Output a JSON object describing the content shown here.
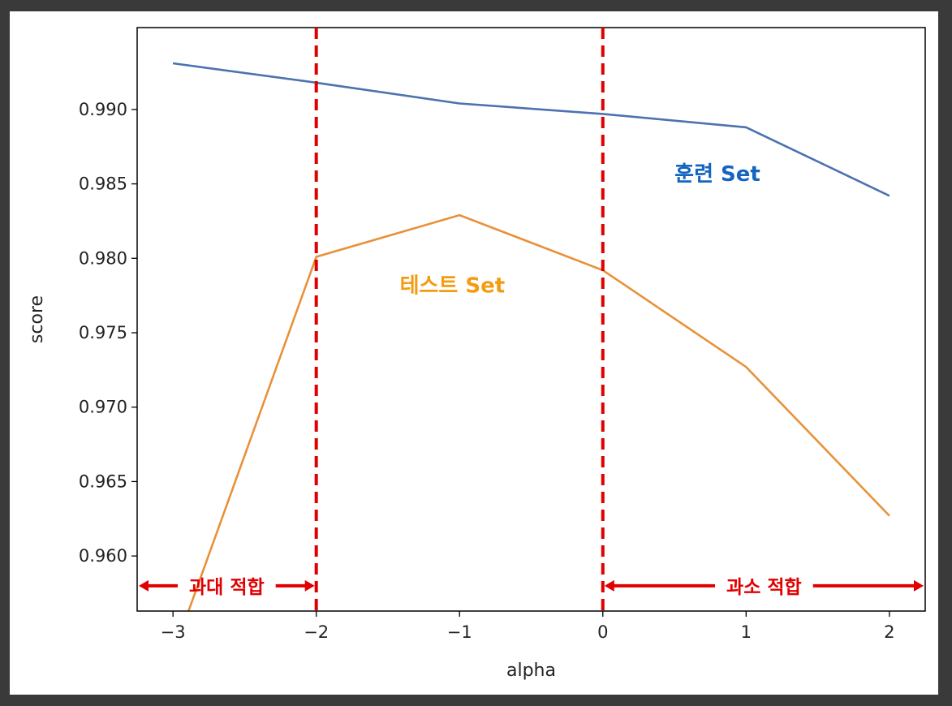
{
  "chart_data": {
    "type": "line",
    "x": [
      -3,
      -2,
      -1,
      0,
      1,
      2
    ],
    "xlabel": "alpha",
    "ylabel": "score",
    "xlim": [
      -3.25,
      2.25
    ],
    "ylim": [
      0.9563,
      0.9955
    ],
    "xticks": [
      -3,
      -2,
      -1,
      0,
      1,
      2
    ],
    "xtick_labels": [
      "−3",
      "−2",
      "−1",
      "0",
      "1",
      "2"
    ],
    "yticks": [
      0.96,
      0.965,
      0.97,
      0.975,
      0.98,
      0.985,
      0.99
    ],
    "ytick_labels": [
      "0.960",
      "0.965",
      "0.970",
      "0.975",
      "0.980",
      "0.985",
      "0.990"
    ],
    "grid": false,
    "series": [
      {
        "color": "#4c72b0",
        "values": [
          0.9931,
          0.9918,
          0.9904,
          0.9897,
          0.9888,
          0.9842
        ]
      },
      {
        "color": "#e8913a",
        "values": [
          0.9534,
          0.9801,
          0.9829,
          0.9792,
          0.9727,
          0.9627
        ]
      }
    ],
    "vlines": [
      -2,
      0
    ],
    "vline_color": "#e00000",
    "annotations": [
      {
        "text": "훈련 Set",
        "x": 0.8,
        "y": 0.9852,
        "color": "#1565c0"
      },
      {
        "text": "테스트 Set",
        "x": -1.05,
        "y": 0.9777,
        "color": "#f39c12"
      }
    ],
    "regions": [
      {
        "text": "과대 적합",
        "from": -3.25,
        "to": -2,
        "y": 0.958
      },
      {
        "text": "과소 적합",
        "from": 0,
        "to": 2.25,
        "y": 0.958
      }
    ]
  }
}
